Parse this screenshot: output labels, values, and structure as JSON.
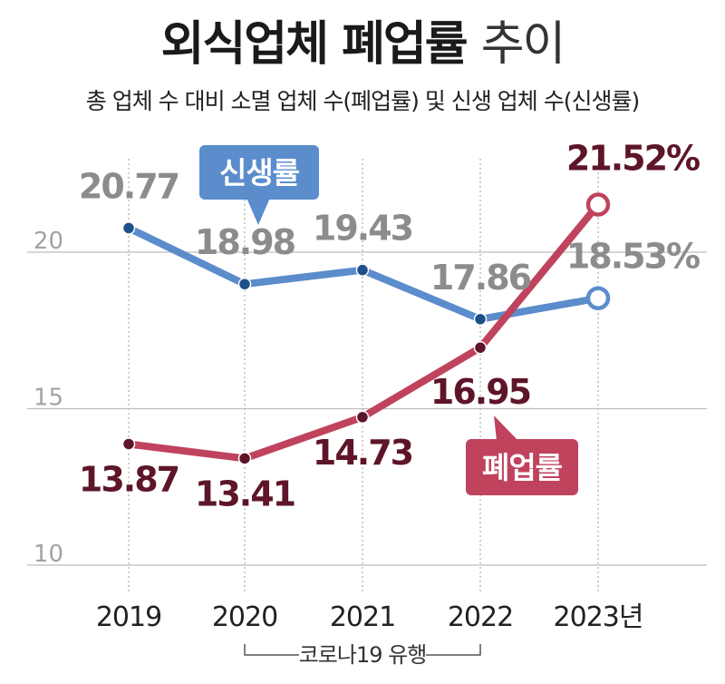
{
  "chart_data": {
    "type": "line",
    "title_main": "외식업체 폐업률",
    "title_tail": "추이",
    "subtitle": "총 업체 수 대비 소멸 업체 수(폐업률) 및 신생 업체 수(신생률)",
    "categories": [
      "2019",
      "2020",
      "2021",
      "2022",
      "2023년"
    ],
    "ylim": [
      10,
      22
    ],
    "yticks": [
      10,
      15,
      20
    ],
    "grid": true,
    "annotation": "코로나19 유행",
    "annotation_span": [
      "2020",
      "2022"
    ],
    "series": [
      {
        "name": "신생률",
        "color": "#5b8ccc",
        "marker_color": "#1d4f88",
        "label_color": "#8c8c8c",
        "values": [
          20.77,
          18.98,
          19.43,
          17.86,
          18.53
        ],
        "labels": [
          "20.77",
          "18.98",
          "19.43",
          "17.86",
          "18.53%"
        ]
      },
      {
        "name": "폐업률",
        "color": "#c0435e",
        "marker_color": "#5e1528",
        "label_color": "#5e1528",
        "values": [
          13.87,
          13.41,
          14.73,
          16.95,
          21.52
        ],
        "labels": [
          "13.87",
          "13.41",
          "14.73",
          "16.95",
          "21.52%"
        ]
      }
    ]
  }
}
